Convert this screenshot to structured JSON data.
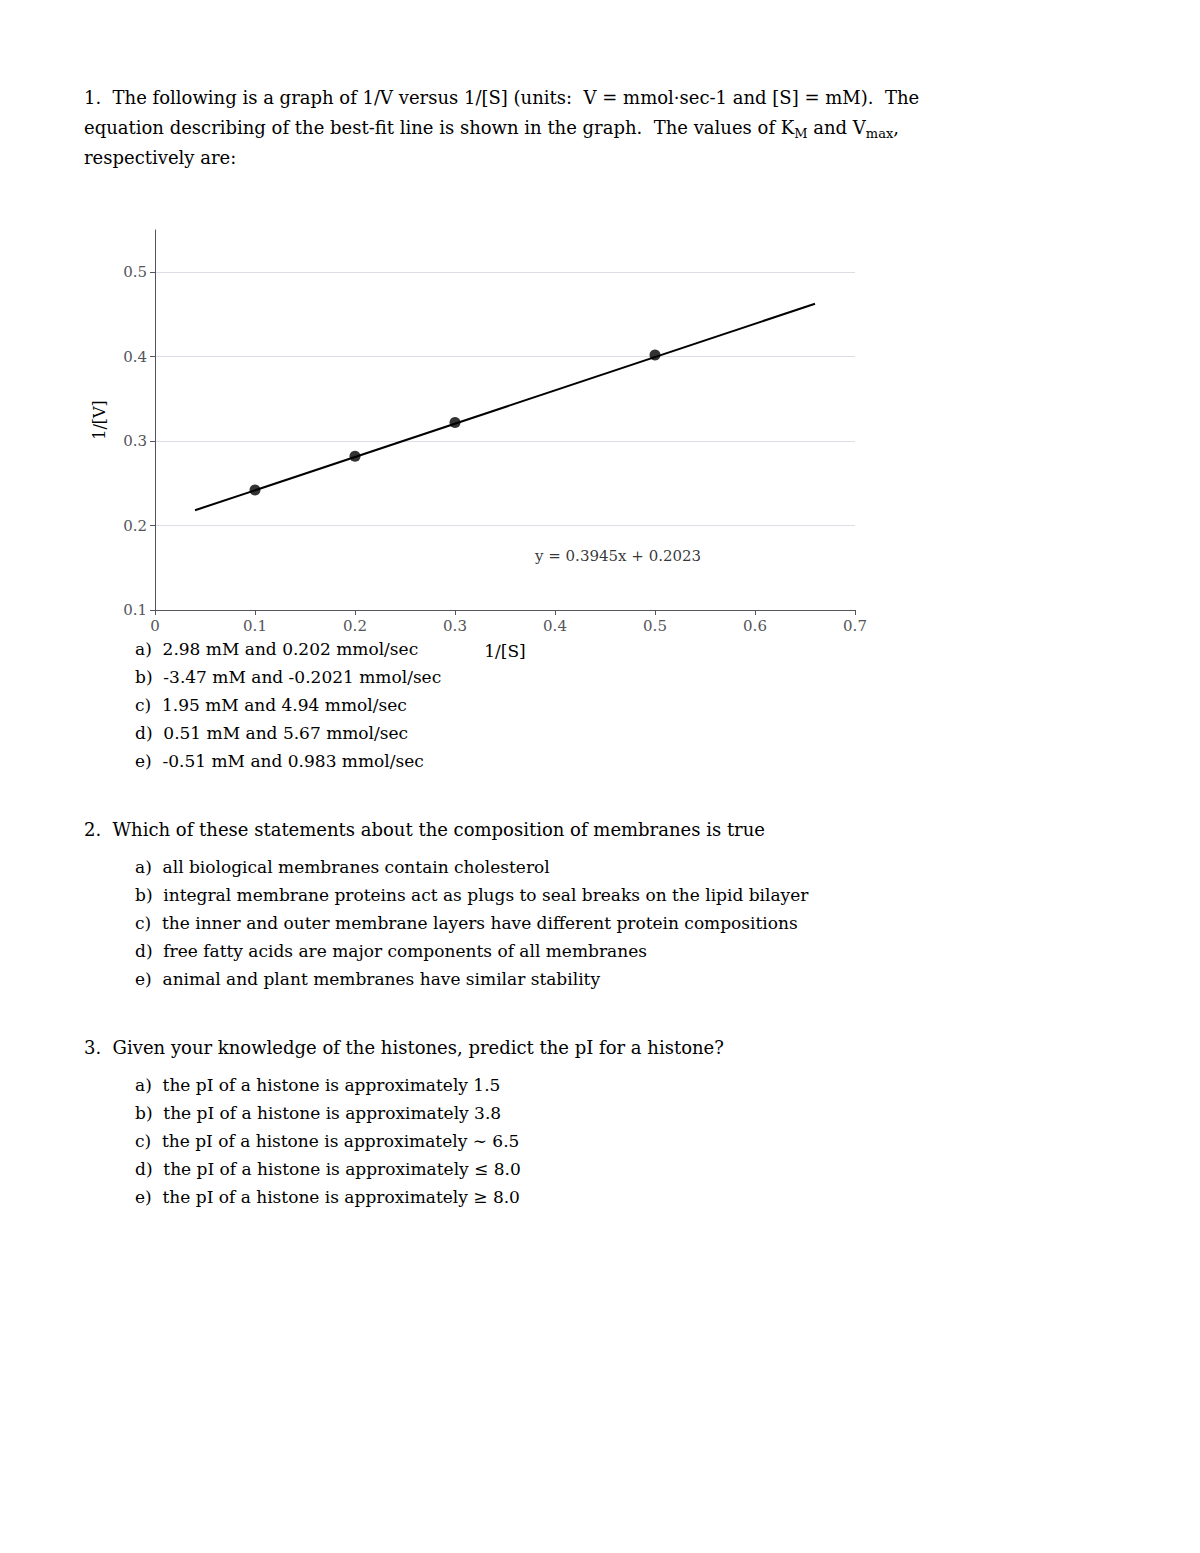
{
  "chart_data": {
    "type": "scatter",
    "x_label": "1/[S]",
    "y_label": "1/[V]",
    "xlim": [
      0,
      0.7
    ],
    "xticks": [
      0,
      0.1,
      0.2,
      0.3,
      0.4,
      0.5,
      0.6,
      0.7
    ],
    "ylim": [
      0.1,
      0.55
    ],
    "yticks": [
      0.1,
      0.2,
      0.3,
      0.4,
      0.5
    ],
    "grid": true,
    "series": [
      {
        "type": "scatter",
        "marker": "circle",
        "color": "#000000",
        "x": [
          0.1,
          0.2,
          0.3,
          0.5
        ],
        "values": [
          0.242,
          0.282,
          0.322,
          0.402
        ]
      },
      {
        "type": "line",
        "line_style": "solid",
        "color": "#000000",
        "x": [
          0.04,
          0.66
        ],
        "values": [
          0.21808,
          0.46267
        ]
      }
    ],
    "annotations": [
      {
        "text": "y = 0.3945x + 0.2023",
        "x": 0.38,
        "y": 0.155
      }
    ]
  },
  "page_text": {
    "before_chart": [
      "1.  The following is a graph of 1/V versus 1/[S] (units:  V = mmol·sec-1 and [S] = mM).  The",
      [
        "equation describing of the best-fit line is shown in the graph.  The values of K",
        "M",
        " and V",
        "max",
        ","
      ],
      "respectively are:"
    ],
    "after_chart": [
      {
        "choices": [
          "a)  2.98 mM and 0.202 mmol/sec",
          "b)  -3.47 mM and -0.2021 mmol/sec",
          "c)  1.95 mM and 4.94 mmol/sec",
          "d)  0.51 mM and 5.67 mmol/sec",
          "e)  -0.51 mM and 0.983 mmol/sec"
        ]
      },
      {
        "question": "2.  Which of these statements about the composition of membranes is true",
        "choices": [
          "a)  all biological membranes contain cholesterol",
          "b)  integral membrane proteins act as plugs to seal breaks on the lipid bilayer",
          "c)  the inner and outer membrane layers have different protein compositions",
          "d)  free fatty acids are major components of all membranes",
          "e)  animal and plant membranes have similar stability"
        ]
      },
      {
        "question": "3.  Given your knowledge of the histones, predict the pI for a histone?",
        "choices": [
          "a)  the pI of a histone is approximately 1.5",
          "b)  the pI of a histone is approximately 3.8",
          "c)  the pI of a histone is approximately ∼ 6.5",
          "d)  the pI of a histone is approximately ≤ 8.0",
          "e)  the pI of a histone is approximately ≥ 8.0"
        ]
      }
    ]
  }
}
